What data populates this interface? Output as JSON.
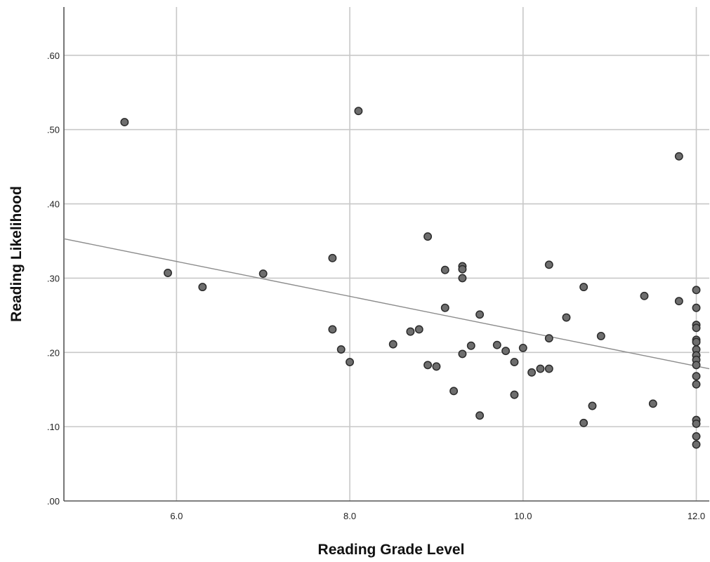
{
  "chart_data": {
    "type": "scatter",
    "title": "",
    "xlabel": "Reading Grade Level",
    "ylabel": "Reading Likelihood",
    "xlim": [
      4.7,
      12.15
    ],
    "ylim": [
      0.0,
      0.665
    ],
    "x_ticks": [
      6.0,
      8.0,
      10.0,
      12.0
    ],
    "x_tick_labels": [
      "6.0",
      "8.0",
      "10.0",
      "12.0"
    ],
    "y_ticks": [
      0.0,
      0.1,
      0.2,
      0.3,
      0.4,
      0.5,
      0.6
    ],
    "y_tick_labels": [
      ".00",
      ".10",
      ".20",
      ".30",
      ".40",
      ".50",
      ".60"
    ],
    "grid": true,
    "fit_line": {
      "x": [
        4.7,
        12.15
      ],
      "y": [
        0.353,
        0.178
      ]
    },
    "points": [
      {
        "x": 5.4,
        "y": 0.51
      },
      {
        "x": 5.9,
        "y": 0.307
      },
      {
        "x": 6.3,
        "y": 0.288
      },
      {
        "x": 7.0,
        "y": 0.306
      },
      {
        "x": 7.8,
        "y": 0.327
      },
      {
        "x": 7.8,
        "y": 0.231
      },
      {
        "x": 7.9,
        "y": 0.204
      },
      {
        "x": 8.0,
        "y": 0.187
      },
      {
        "x": 8.1,
        "y": 0.525
      },
      {
        "x": 8.5,
        "y": 0.211
      },
      {
        "x": 8.7,
        "y": 0.228
      },
      {
        "x": 8.8,
        "y": 0.231
      },
      {
        "x": 8.9,
        "y": 0.356
      },
      {
        "x": 8.9,
        "y": 0.183
      },
      {
        "x": 9.0,
        "y": 0.181
      },
      {
        "x": 9.1,
        "y": 0.311
      },
      {
        "x": 9.1,
        "y": 0.26
      },
      {
        "x": 9.2,
        "y": 0.148
      },
      {
        "x": 9.3,
        "y": 0.316
      },
      {
        "x": 9.3,
        "y": 0.312
      },
      {
        "x": 9.3,
        "y": 0.3
      },
      {
        "x": 9.3,
        "y": 0.198
      },
      {
        "x": 9.4,
        "y": 0.209
      },
      {
        "x": 9.5,
        "y": 0.251
      },
      {
        "x": 9.5,
        "y": 0.115
      },
      {
        "x": 9.7,
        "y": 0.21
      },
      {
        "x": 9.8,
        "y": 0.202
      },
      {
        "x": 9.9,
        "y": 0.187
      },
      {
        "x": 9.9,
        "y": 0.143
      },
      {
        "x": 10.0,
        "y": 0.206
      },
      {
        "x": 10.1,
        "y": 0.173
      },
      {
        "x": 10.2,
        "y": 0.178
      },
      {
        "x": 10.3,
        "y": 0.318
      },
      {
        "x": 10.3,
        "y": 0.219
      },
      {
        "x": 10.3,
        "y": 0.178
      },
      {
        "x": 10.5,
        "y": 0.247
      },
      {
        "x": 10.7,
        "y": 0.288
      },
      {
        "x": 10.7,
        "y": 0.105
      },
      {
        "x": 10.8,
        "y": 0.128
      },
      {
        "x": 10.9,
        "y": 0.222
      },
      {
        "x": 11.4,
        "y": 0.276
      },
      {
        "x": 11.5,
        "y": 0.131
      },
      {
        "x": 11.8,
        "y": 0.464
      },
      {
        "x": 11.8,
        "y": 0.269
      },
      {
        "x": 12.0,
        "y": 0.284
      },
      {
        "x": 12.0,
        "y": 0.26
      },
      {
        "x": 12.0,
        "y": 0.237
      },
      {
        "x": 12.0,
        "y": 0.233
      },
      {
        "x": 12.0,
        "y": 0.217
      },
      {
        "x": 12.0,
        "y": 0.214
      },
      {
        "x": 12.0,
        "y": 0.204
      },
      {
        "x": 12.0,
        "y": 0.196
      },
      {
        "x": 12.0,
        "y": 0.19
      },
      {
        "x": 12.0,
        "y": 0.183
      },
      {
        "x": 12.0,
        "y": 0.168
      },
      {
        "x": 12.0,
        "y": 0.157
      },
      {
        "x": 12.0,
        "y": 0.109
      },
      {
        "x": 12.0,
        "y": 0.104
      },
      {
        "x": 12.0,
        "y": 0.087
      },
      {
        "x": 12.0,
        "y": 0.076
      }
    ]
  }
}
